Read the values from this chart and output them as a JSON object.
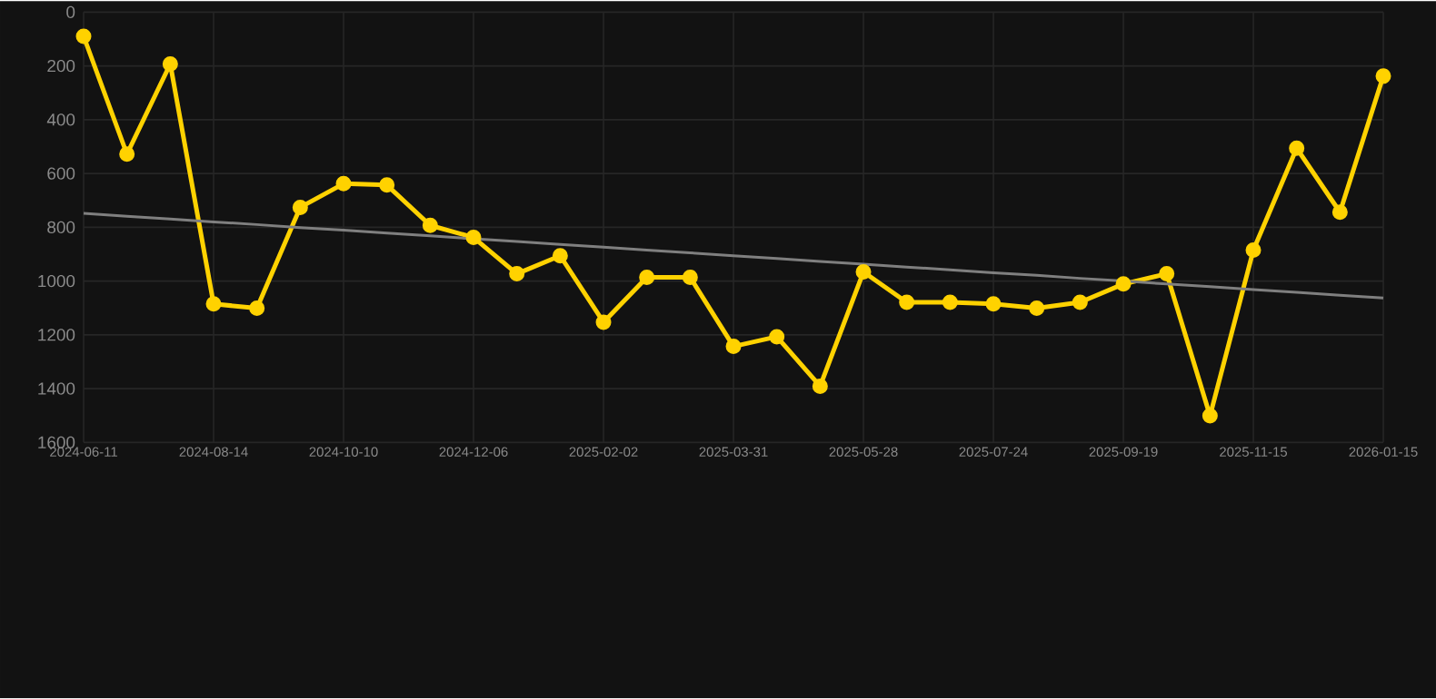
{
  "chart_data": {
    "type": "line",
    "categories": [
      "2024-06-11",
      null,
      null,
      "2024-08-14",
      null,
      null,
      "2024-10-10",
      null,
      null,
      "2024-12-06",
      null,
      null,
      "2025-02-02",
      null,
      null,
      "2025-03-31",
      null,
      null,
      "2025-05-28",
      null,
      null,
      "2025-07-24",
      null,
      null,
      "2025-09-19",
      null,
      null,
      "2025-11-15",
      null,
      null,
      "2026-01-15"
    ],
    "series": [
      {
        "color": "#ffd200",
        "values": [
          90,
          528,
          193,
          1085,
          1101,
          726,
          638,
          643,
          793,
          838,
          973,
          906,
          1153,
          986,
          986,
          1243,
          1207,
          1391,
          966,
          1079,
          1079,
          1085,
          1101,
          1079,
          1011,
          973,
          1501,
          885,
          506,
          744,
          238
        ],
        "marker": "circle"
      },
      {
        "color": "#7f7f7f",
        "type": "line",
        "values": [
          748,
          759,
          769,
          780,
          790,
          801,
          811,
          822,
          832,
          843,
          853,
          864,
          874,
          885,
          895,
          906,
          916,
          927,
          937,
          948,
          958,
          969,
          979,
          990,
          1000,
          1011,
          1021,
          1032,
          1042,
          1053,
          1063
        ],
        "marker": "none"
      }
    ],
    "ylim": [
      1600,
      0
    ],
    "yticks": [
      0,
      200,
      400,
      600,
      800,
      1000,
      1200,
      1400,
      1600
    ],
    "grid": true
  }
}
